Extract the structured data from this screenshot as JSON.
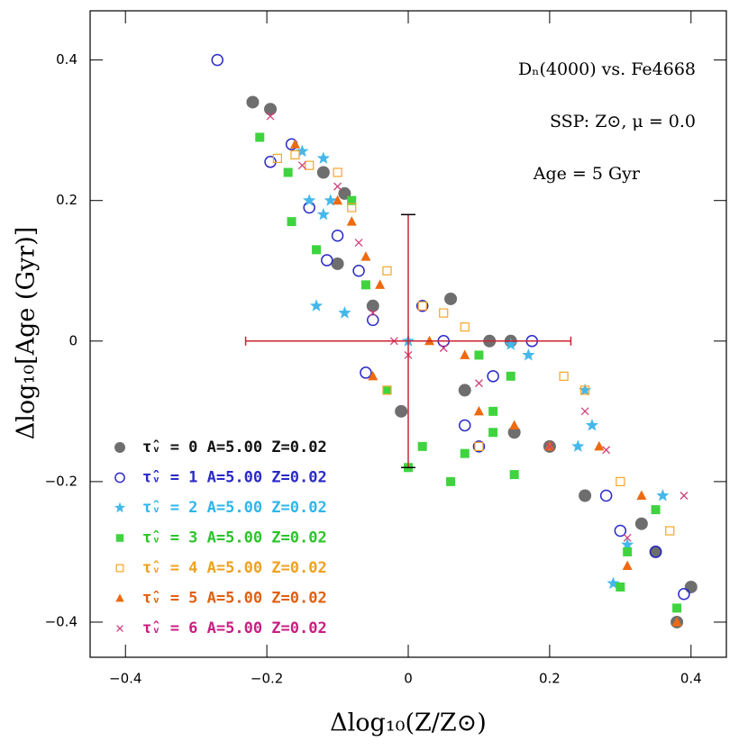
{
  "chart_data": {
    "type": "scatter",
    "annotations": [
      "Dₙ(4000) vs. Fe4668",
      "SSP: Z⊙, μ = 0.0",
      "Age = 5 Gyr"
    ],
    "x_label": "Δlog₁₀(Z/Z⊙)",
    "y_label": "Δlog₁₀[Age (Gyr)]",
    "xlim": [
      -0.45,
      0.45
    ],
    "ylim": [
      -0.45,
      0.47
    ],
    "xticks": [
      {
        "value": -0.4,
        "label": "−0.4"
      },
      {
        "value": -0.2,
        "label": "−0.2"
      },
      0,
      0.2,
      0.4
    ],
    "yticks": [
      {
        "value": -0.4,
        "label": "−0.4"
      },
      {
        "value": -0.2,
        "label": "−0.2"
      },
      0,
      0.2,
      0.4
    ],
    "error_bars": [
      {
        "x": 0,
        "y": 0,
        "xerr": 0.23,
        "yerr": 0.18,
        "color": "#cc2233"
      }
    ],
    "series": [
      {
        "name": "τ̂ᵥ = 0 A=5.00 Z=0.02",
        "marker": "filled-circle",
        "color": "#6e6e6e",
        "label_color": "#111111",
        "x": [
          -0.22,
          -0.195,
          -0.12,
          -0.09,
          -0.1,
          0.06,
          0.115,
          0.145,
          -0.01,
          0.08,
          0.15,
          0.2,
          0.25,
          0.33,
          0.38,
          0.4,
          0.35,
          -0.05
        ],
        "y": [
          0.34,
          0.33,
          0.24,
          0.21,
          0.11,
          0.06,
          0,
          0,
          -0.1,
          -0.07,
          -0.13,
          -0.15,
          -0.22,
          -0.26,
          -0.4,
          -0.35,
          -0.3,
          0.05
        ]
      },
      {
        "name": "τ̂ᵥ = 1 A=5.00 Z=0.02",
        "marker": "open-circle",
        "color": "#2a2ac8",
        "label_color": "#2a2ac8",
        "x": [
          -0.27,
          -0.195,
          -0.165,
          -0.14,
          -0.115,
          -0.1,
          -0.07,
          -0.05,
          0.02,
          0.05,
          0.175,
          0.12,
          0.08,
          0.28,
          0.3,
          0.35,
          0.39,
          -0.06,
          0.1
        ],
        "y": [
          0.4,
          0.255,
          0.28,
          0.19,
          0.115,
          0.15,
          0.1,
          0.03,
          0.05,
          0,
          0,
          -0.05,
          -0.12,
          -0.22,
          -0.27,
          -0.3,
          -0.36,
          -0.045,
          -0.15
        ]
      },
      {
        "name": "τ̂ᵥ = 2 A=5.00 Z=0.02",
        "marker": "star",
        "color": "#45b8ea",
        "label_color": "#2fb6ea",
        "x": [
          -0.15,
          -0.12,
          -0.14,
          -0.11,
          -0.13,
          -0.09,
          0.145,
          0.17,
          0.25,
          0.26,
          0.24,
          0.36,
          0.29,
          0.31,
          0,
          -0.12
        ],
        "y": [
          0.27,
          0.26,
          0.2,
          0.2,
          0.05,
          0.04,
          -0.005,
          -0.02,
          -0.07,
          -0.12,
          -0.15,
          -0.22,
          -0.345,
          -0.29,
          0,
          0.18
        ]
      },
      {
        "name": "τ̂ᵥ = 3 A=5.00 Z=0.02",
        "marker": "filled-square",
        "color": "#3fd43f",
        "label_color": "#2bc42b",
        "x": [
          -0.21,
          -0.17,
          -0.165,
          -0.13,
          -0.08,
          -0.06,
          0,
          0.02,
          0.12,
          0.145,
          0.1,
          0.15,
          0.12,
          0.06,
          -0.03,
          0.08,
          0.35,
          0.3,
          0.38,
          0.31
        ],
        "y": [
          0.29,
          0.24,
          0.17,
          0.13,
          0.2,
          0.08,
          -0.18,
          -0.15,
          -0.13,
          -0.05,
          -0.02,
          -0.19,
          -0.1,
          -0.2,
          -0.07,
          -0.16,
          -0.24,
          -0.35,
          -0.38,
          -0.3
        ]
      },
      {
        "name": "τ̂ᵥ = 4 A=5.00 Z=0.02",
        "marker": "open-square",
        "color": "#f5a623",
        "label_color": "#f0a020",
        "x": [
          -0.185,
          -0.16,
          -0.14,
          -0.1,
          -0.08,
          -0.03,
          0.02,
          0.05,
          0.08,
          -0.03,
          0.1,
          0.22,
          0.25,
          0.3,
          0.37
        ],
        "y": [
          0.26,
          0.265,
          0.25,
          0.24,
          0.19,
          0.1,
          0.05,
          0.04,
          0.02,
          -0.07,
          -0.15,
          -0.05,
          -0.07,
          -0.2,
          -0.27
        ]
      },
      {
        "name": "τ̂ᵥ = 5 A=5.00 Z=0.02",
        "marker": "triangle",
        "color": "#ee6a10",
        "label_color": "#e06010",
        "x": [
          -0.16,
          -0.1,
          -0.08,
          -0.06,
          -0.04,
          0.03,
          0.08,
          -0.05,
          0.1,
          0.15,
          0.2,
          0.33,
          0.38,
          0.31,
          0.27
        ],
        "y": [
          0.28,
          0.2,
          0.17,
          0.12,
          0.08,
          0,
          -0.02,
          -0.05,
          -0.1,
          -0.12,
          -0.15,
          -0.22,
          -0.4,
          -0.32,
          -0.15
        ]
      },
      {
        "name": "τ̂ᵥ = 6 A=5.00 Z=0.02",
        "marker": "cross",
        "color": "#d0407a",
        "label_color": "#c81e82",
        "x": [
          -0.195,
          -0.15,
          -0.1,
          -0.07,
          -0.05,
          0,
          0.05,
          0.1,
          0.2,
          0.28,
          0.39,
          0.31,
          0.25,
          -0.02
        ],
        "y": [
          0.32,
          0.25,
          0.22,
          0.14,
          0.04,
          -0.02,
          -0.01,
          -0.06,
          -0.15,
          -0.155,
          -0.22,
          -0.28,
          -0.1,
          0
        ]
      }
    ]
  }
}
